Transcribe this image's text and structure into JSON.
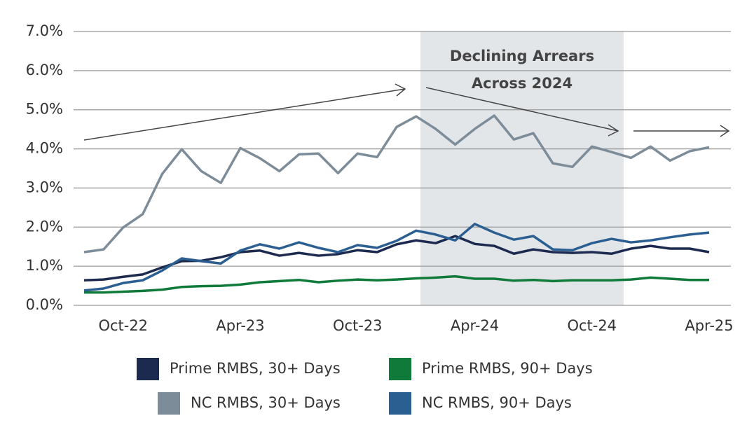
{
  "chart_data": {
    "type": "line",
    "categories": [
      null,
      null,
      "Oct-22",
      null,
      null,
      null,
      null,
      null,
      "Apr-23",
      null,
      null,
      null,
      null,
      null,
      "Oct-23",
      null,
      null,
      null,
      null,
      null,
      "Apr-24",
      null,
      null,
      null,
      null,
      null,
      "Oct-24",
      null,
      null,
      null,
      null,
      null,
      "Apr-25"
    ],
    "series": [
      {
        "name": "Prime RMBS, 30+ Days",
        "color": "#1b2a4e",
        "values": [
          0.64,
          0.66,
          0.73,
          0.79,
          0.97,
          1.13,
          1.14,
          1.23,
          1.36,
          1.4,
          1.27,
          1.34,
          1.27,
          1.31,
          1.41,
          1.36,
          1.56,
          1.66,
          1.59,
          1.77,
          1.57,
          1.52,
          1.32,
          1.43,
          1.36,
          1.34,
          1.36,
          1.32,
          1.45,
          1.52,
          1.45,
          1.45,
          1.36
        ]
      },
      {
        "name": "Prime RMBS, 90+ Days",
        "color": "#0f7a3a",
        "values": [
          0.33,
          0.33,
          0.35,
          0.37,
          0.4,
          0.47,
          0.49,
          0.5,
          0.53,
          0.59,
          0.62,
          0.65,
          0.59,
          0.63,
          0.66,
          0.64,
          0.66,
          0.69,
          0.71,
          0.74,
          0.68,
          0.68,
          0.63,
          0.65,
          0.62,
          0.64,
          0.64,
          0.64,
          0.66,
          0.71,
          0.68,
          0.65,
          0.65
        ]
      },
      {
        "name": "NC RMBS, 30+ Days",
        "color": "#7d8c99",
        "values": [
          1.36,
          1.43,
          1.99,
          2.33,
          3.36,
          3.99,
          3.43,
          3.13,
          4.02,
          3.76,
          3.43,
          3.86,
          3.88,
          3.38,
          3.88,
          3.79,
          4.56,
          4.83,
          4.51,
          4.11,
          4.51,
          4.85,
          4.24,
          4.4,
          3.63,
          3.54,
          4.06,
          3.92,
          3.77,
          4.06,
          3.7,
          3.94,
          4.04
        ]
      },
      {
        "name": "NC RMBS, 90+ Days",
        "color": "#2b5f91",
        "values": [
          0.38,
          0.43,
          0.57,
          0.64,
          0.89,
          1.2,
          1.13,
          1.07,
          1.4,
          1.56,
          1.45,
          1.61,
          1.47,
          1.36,
          1.54,
          1.47,
          1.65,
          1.91,
          1.81,
          1.66,
          2.08,
          1.86,
          1.68,
          1.77,
          1.43,
          1.41,
          1.59,
          1.7,
          1.61,
          1.66,
          1.74,
          1.81,
          1.86
        ]
      }
    ],
    "ylim": [
      0,
      7
    ],
    "yticks": [
      {
        "value": 0,
        "label": "0.0%"
      },
      {
        "value": 1,
        "label": "1.0%"
      },
      {
        "value": 2,
        "label": "2.0%"
      },
      {
        "value": 3,
        "label": "3.0%"
      },
      {
        "value": 4,
        "label": "4.0%"
      },
      {
        "value": 5,
        "label": "5.0%"
      },
      {
        "value": 6,
        "label": "6.0%"
      },
      {
        "value": 7,
        "label": "7.0%"
      }
    ],
    "grid": true,
    "annotation": [
      "Declining Arrears",
      "Across 2024"
    ]
  }
}
